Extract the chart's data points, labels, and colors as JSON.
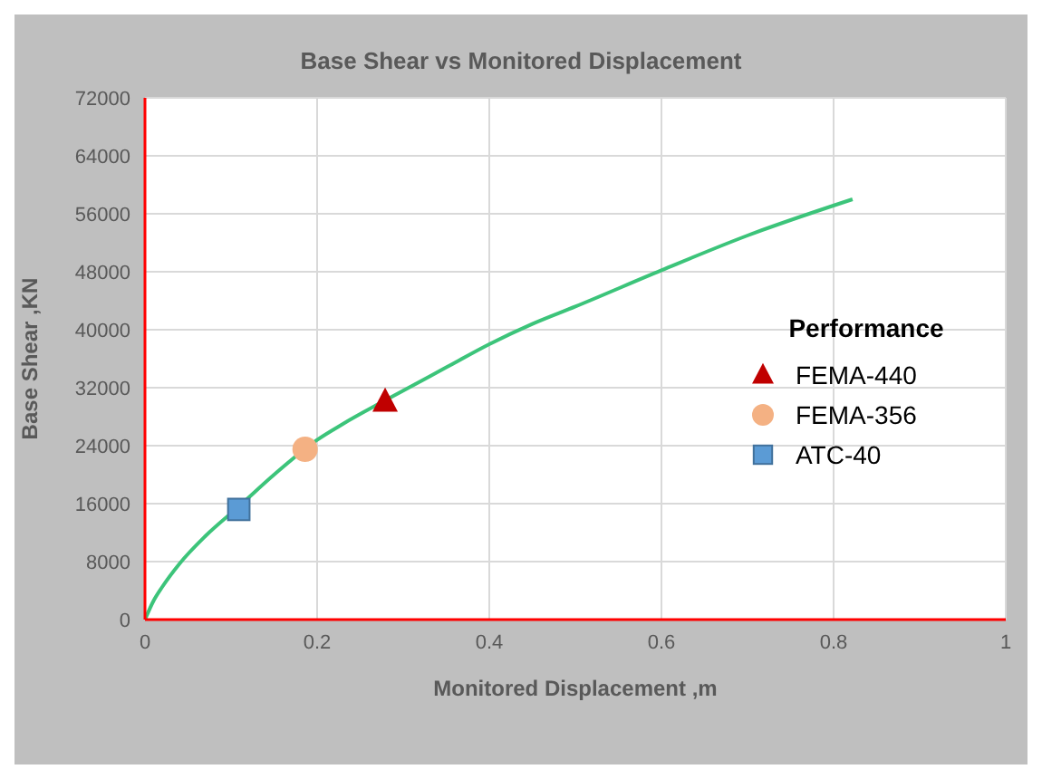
{
  "chart_data": {
    "type": "line",
    "title": "Base Shear vs Monitored Displacement",
    "xlabel": "Monitored Displacement ,m",
    "ylabel": "Base Shear ,KN",
    "legend_title": "Performance",
    "series": [
      {
        "color": "#3cc47a",
        "marker": "none",
        "x": [
          0,
          0.01,
          0.02,
          0.04,
          0.07,
          0.109,
          0.15,
          0.2,
          0.23,
          0.28,
          0.35,
          0.4,
          0.45,
          0.5,
          0.6,
          0.7,
          0.822
        ],
        "values": [
          0,
          2600,
          4500,
          7700,
          11500,
          15600,
          20000,
          24800,
          27000,
          30300,
          34800,
          38000,
          40800,
          43200,
          48200,
          53000,
          58000
        ]
      },
      {
        "type": "scatter",
        "name": "FEMA-440",
        "color": "#c00000",
        "marker": "triangle",
        "x": [
          0.279
        ],
        "values": [
          30100
        ]
      },
      {
        "type": "scatter",
        "name": "FEMA-356",
        "color": "#f4b183",
        "marker": "circle",
        "x": [
          0.186
        ],
        "values": [
          23500
        ]
      },
      {
        "type": "scatter",
        "name": "ATC-40",
        "color": "#5b9bd5",
        "marker": "square",
        "x": [
          0.109
        ],
        "values": [
          15200
        ]
      }
    ],
    "xlim": [
      0,
      1
    ],
    "xticks": [
      0,
      0.2,
      0.4,
      0.6,
      0.8,
      1
    ],
    "ylim": [
      0,
      72000
    ],
    "yticks": [
      0,
      8000,
      16000,
      24000,
      32000,
      40000,
      48000,
      56000,
      64000,
      72000
    ],
    "grid": true,
    "legend": "right"
  }
}
